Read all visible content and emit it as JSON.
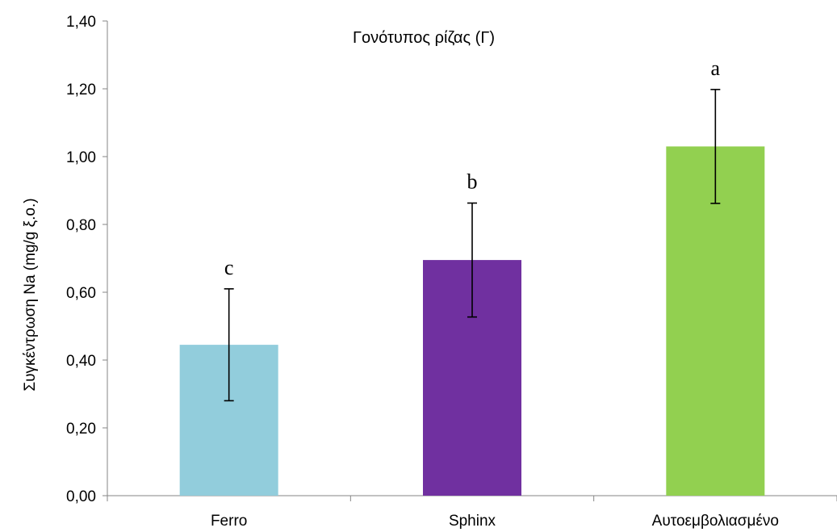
{
  "chart_data": {
    "type": "bar",
    "title": "Γονότυπος ρίζας (Γ)",
    "xlabel": "",
    "ylabel": "Συγκέντρωση Na (mg/g ξ.ο.)",
    "ylim": [
      0,
      1.4
    ],
    "y_ticks": [
      "0,00",
      "0,20",
      "0,40",
      "0,60",
      "0,80",
      "1,00",
      "1,20",
      "1,40"
    ],
    "categories": [
      "Ferro",
      "Sphinx",
      "Αυτοεμβολιασμένο"
    ],
    "values": [
      0.445,
      0.695,
      1.03
    ],
    "errors": [
      0.165,
      0.168,
      0.168
    ],
    "significance_labels": [
      "c",
      "b",
      "a"
    ],
    "colors": [
      "#92CDDC",
      "#7030A0",
      "#92D050"
    ],
    "grid": false,
    "legend": "none"
  }
}
